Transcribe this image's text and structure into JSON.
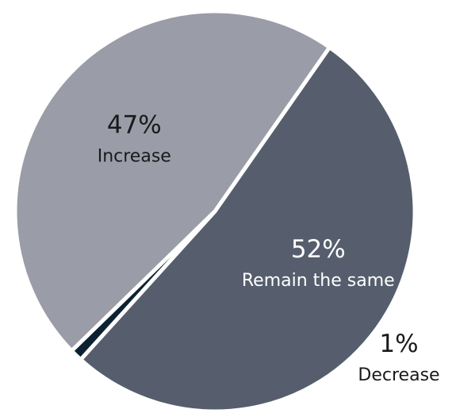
{
  "chart_data": {
    "type": "pie",
    "title": "",
    "slices": [
      {
        "label": "Remain the same",
        "value": 52,
        "value_label": "52%",
        "color": "#565e6d",
        "text_color": "#ffffff"
      },
      {
        "label": "Decrease",
        "value": 1,
        "value_label": "1%",
        "color": "#0c2233",
        "text_color": "#1a1a1a"
      },
      {
        "label": "Increase",
        "value": 47,
        "value_label": "47%",
        "color": "#9a9ca8",
        "text_color": "#1a1a1a"
      }
    ],
    "start_angle_deg": -55,
    "direction": "clockwise",
    "label_position": "on slices; Decrease label outside bottom-right",
    "legend": "none"
  }
}
